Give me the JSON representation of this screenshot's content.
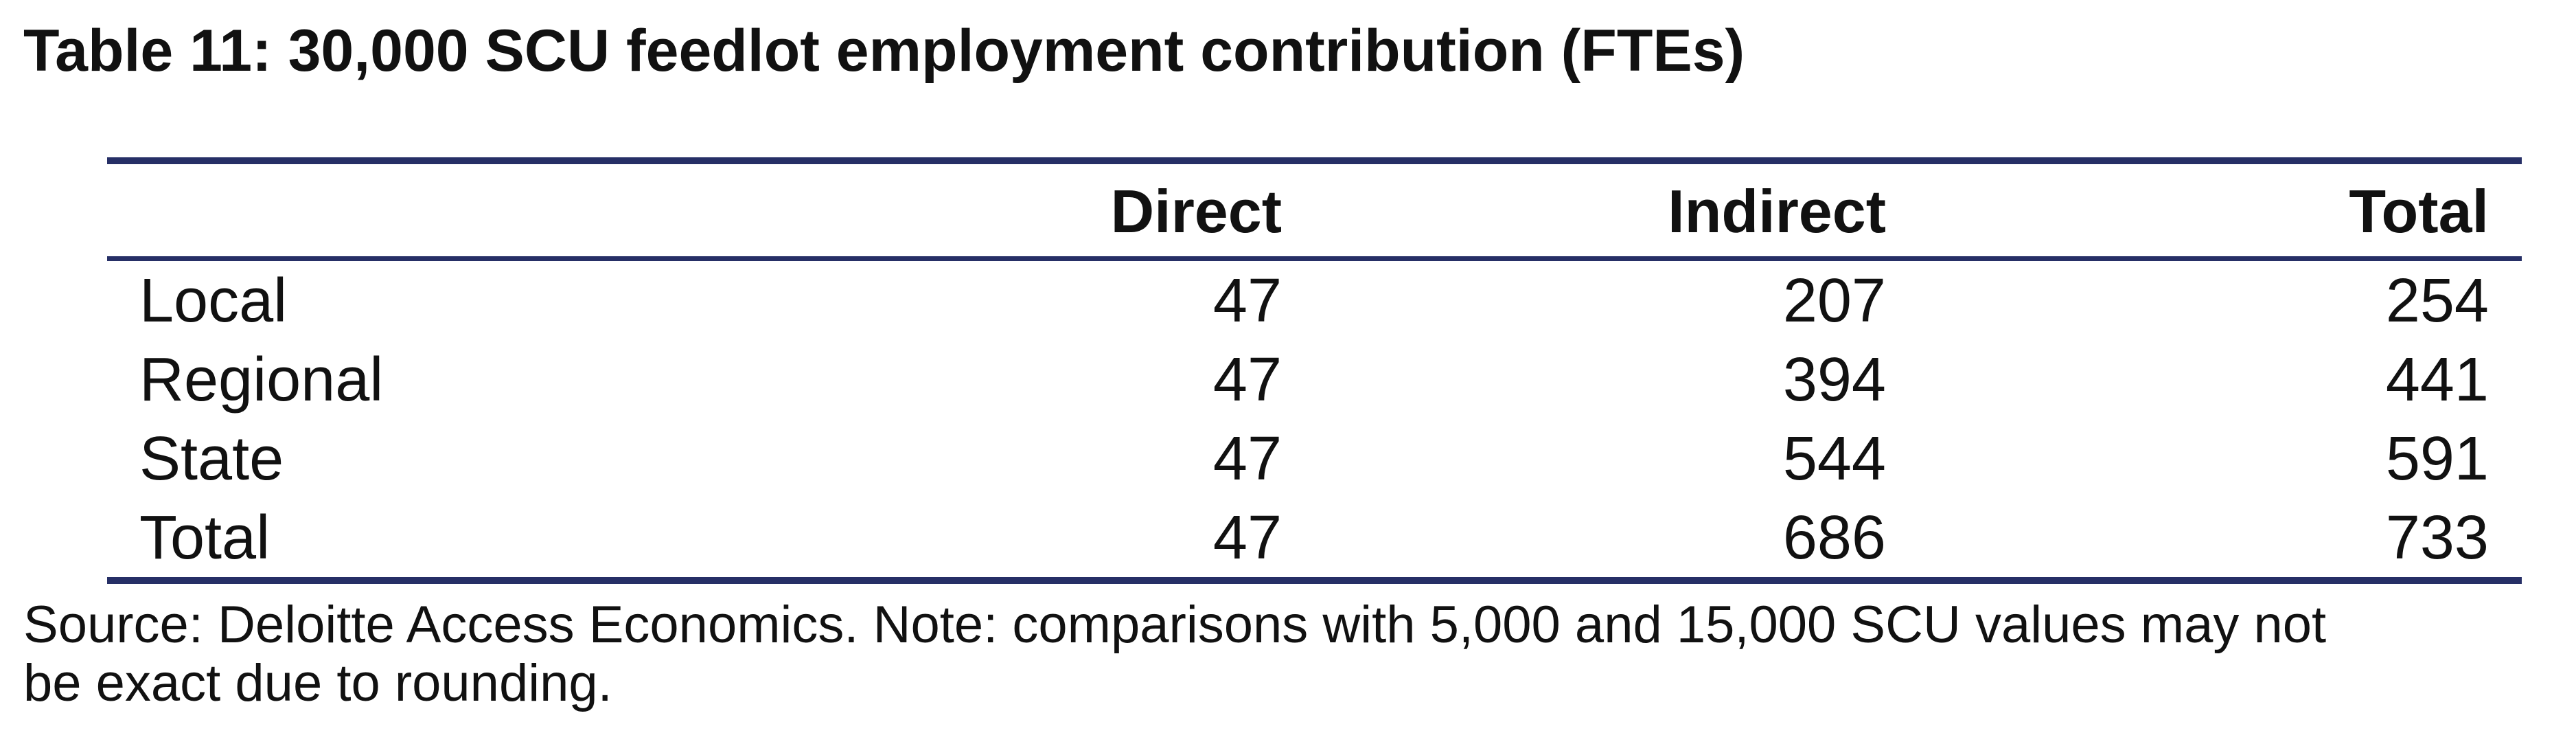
{
  "title": "Table 11: 30,000 SCU feedlot employment contribution (FTEs)",
  "table": {
    "columns": [
      "Direct",
      "Indirect",
      "Total"
    ],
    "rows": [
      {
        "label": "Local",
        "values": [
          47,
          207,
          254
        ]
      },
      {
        "label": "Regional",
        "values": [
          47,
          394,
          441
        ]
      },
      {
        "label": "State",
        "values": [
          47,
          544,
          591
        ]
      },
      {
        "label": "Total",
        "values": [
          47,
          686,
          733
        ]
      }
    ]
  },
  "note": [
    "Source: Deloitte Access Economics. Note: comparisons with 5,000 and 15,000 SCU values may not",
    "be exact due to rounding."
  ]
}
